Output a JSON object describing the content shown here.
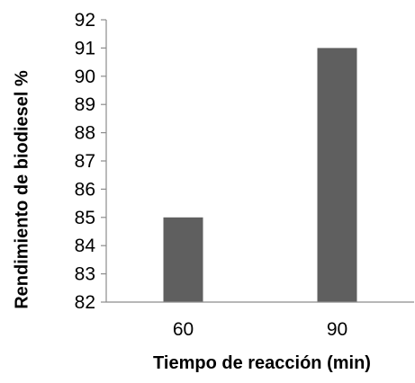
{
  "chart_data": {
    "type": "bar",
    "categories": [
      "60",
      "90"
    ],
    "values": [
      85,
      91
    ],
    "title": "",
    "xlabel": "Tiempo de reacción (min)",
    "ylabel": "Rendimiento de biodiesel %",
    "ylim": [
      82,
      92
    ],
    "yticks": [
      "82",
      "83",
      "84",
      "85",
      "86",
      "87",
      "88",
      "89",
      "90",
      "91",
      "92"
    ],
    "grid": false,
    "legend": "none",
    "colors": {
      "bar": "#5f5f5f",
      "axis": "#8c8c8c",
      "text": "#000000"
    }
  }
}
